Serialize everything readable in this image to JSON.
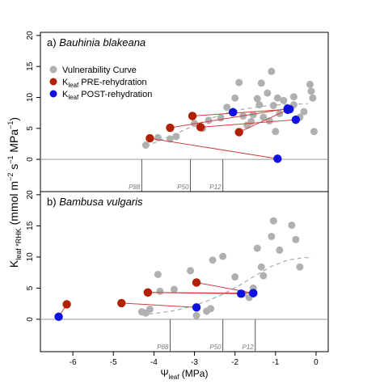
{
  "figure": {
    "ylabel": "K",
    "ylabel_sub": "leaf *RHK",
    "ylabel_units_1": " (mmol m",
    "ylabel_sup1": "−2",
    "ylabel_units_2": " s",
    "ylabel_sup2": "−1",
    "ylabel_units_3": " MPa",
    "ylabel_sup3": "−1",
    "ylabel_end": ")",
    "xlabel": "Ψ",
    "xlabel_sub": "leaf",
    "xlabel_units": " (MPa)"
  },
  "legend": {
    "vc_label": "Vulnerability Curve",
    "pre_main": "K",
    "pre_sub": "leaf",
    "pre_rest": " PRE-rehydration",
    "post_main": "K",
    "post_sub": "leaf",
    "post_rest": " POST-rehydration",
    "colors": {
      "vc": "#b0b0b0",
      "pre": "#b22000",
      "post": "#1010e0",
      "line": "#d04040",
      "curve": "#a8a8a8"
    }
  },
  "chart_data": [
    {
      "type": "scatter",
      "panel_label": "a)",
      "panel_species": "Bauhinia blakeana",
      "xlim": [
        -6.8,
        0.3
      ],
      "ylim": [
        -5.2,
        20.5
      ],
      "x_ticks": [
        "-6",
        "-5",
        "-4",
        "-3",
        "-2",
        "-1",
        "0"
      ],
      "x_tick_values": [
        -6,
        -5,
        -4,
        -3,
        -2,
        -1,
        0
      ],
      "y_ticks": [
        "0",
        "5",
        "10",
        "15",
        "20"
      ],
      "y_tick_values": [
        0,
        5,
        10,
        15,
        20
      ],
      "p_markers": [
        {
          "label": "P88",
          "x": -4.3
        },
        {
          "label": "P50",
          "x": -3.1
        },
        {
          "label": "P12",
          "x": -2.3
        }
      ],
      "vulnerability_curve_points": [
        [
          -4.2,
          2.3
        ],
        [
          -3.9,
          3.5
        ],
        [
          -3.6,
          3.3
        ],
        [
          -3.45,
          3.7
        ],
        [
          -3.0,
          5.8
        ],
        [
          -2.8,
          5.0
        ],
        [
          -2.65,
          6.3
        ],
        [
          -2.35,
          6.7
        ],
        [
          -2.2,
          8.4
        ],
        [
          -2.0,
          9.9
        ],
        [
          -1.9,
          12.4
        ],
        [
          -1.8,
          7.0
        ],
        [
          -1.7,
          5.5
        ],
        [
          -1.6,
          6.1
        ],
        [
          -1.55,
          7.2
        ],
        [
          -1.45,
          9.8
        ],
        [
          -1.4,
          8.8
        ],
        [
          -1.35,
          12.3
        ],
        [
          -1.3,
          6.8
        ],
        [
          -1.2,
          10.7
        ],
        [
          -1.15,
          6.2
        ],
        [
          -1.1,
          14.2
        ],
        [
          -1.05,
          8.7
        ],
        [
          -1.0,
          4.5
        ],
        [
          -0.95,
          9.9
        ],
        [
          -0.9,
          7.4
        ],
        [
          -0.8,
          9.5
        ],
        [
          -0.7,
          7.9
        ],
        [
          -0.55,
          10.1
        ],
        [
          -0.4,
          6.8
        ],
        [
          -0.3,
          7.7
        ],
        [
          -0.15,
          12.1
        ],
        [
          -0.12,
          11.0
        ],
        [
          -0.08,
          9.9
        ],
        [
          -0.05,
          4.5
        ],
        [
          -0.55,
          8.8
        ]
      ],
      "vulnerability_curve_fit": [
        [
          -4.2,
          2.1
        ],
        [
          -3.8,
          3.2
        ],
        [
          -3.4,
          4.3
        ],
        [
          -3.0,
          5.5
        ],
        [
          -2.6,
          6.6
        ],
        [
          -2.2,
          7.5
        ],
        [
          -1.8,
          8.1
        ],
        [
          -1.4,
          8.5
        ],
        [
          -1.0,
          8.8
        ],
        [
          -0.6,
          8.9
        ],
        [
          -0.2,
          9.0
        ]
      ],
      "pairs": [
        {
          "pre": [
            -4.1,
            3.4
          ],
          "post": [
            -0.95,
            0.1
          ]
        },
        {
          "pre": [
            -3.6,
            5.1
          ],
          "post": [
            -0.7,
            8.2
          ]
        },
        {
          "pre": [
            -3.05,
            7.0
          ],
          "post": [
            -0.65,
            8.1
          ]
        },
        {
          "pre": [
            -2.85,
            5.2
          ],
          "post": [
            -0.5,
            6.4
          ]
        },
        {
          "pre": [
            -1.9,
            4.4
          ],
          "post": [
            -0.7,
            8.0
          ]
        },
        {
          "pre": [
            -2.05,
            7.6
          ],
          "post": [
            -2.05,
            7.6
          ]
        }
      ]
    },
    {
      "type": "scatter",
      "panel_label": "b)",
      "panel_species": "Bambusa vulgaris",
      "xlim": [
        -6.8,
        0.3
      ],
      "ylim": [
        -5.2,
        20.5
      ],
      "x_ticks": [
        "-6",
        "-5",
        "-4",
        "-3",
        "-2",
        "-1",
        "0"
      ],
      "x_tick_values": [
        -6,
        -5,
        -4,
        -3,
        -2,
        -1,
        0
      ],
      "y_ticks": [
        "0",
        "5",
        "10",
        "15",
        "20"
      ],
      "y_tick_values": [
        0,
        5,
        10,
        15,
        20
      ],
      "p_markers": [
        {
          "label": "P88",
          "x": -3.6
        },
        {
          "label": "P50",
          "x": -2.3
        },
        {
          "label": "P12",
          "x": -1.5
        }
      ],
      "vulnerability_curve_points": [
        [
          -4.3,
          1.2
        ],
        [
          -4.2,
          1.0
        ],
        [
          -4.1,
          1.6
        ],
        [
          -3.85,
          4.5
        ],
        [
          -3.9,
          7.2
        ],
        [
          -3.5,
          4.8
        ],
        [
          -3.1,
          7.8
        ],
        [
          -2.95,
          0.6
        ],
        [
          -2.7,
          1.3
        ],
        [
          -2.6,
          1.7
        ],
        [
          -2.55,
          9.5
        ],
        [
          -2.3,
          10.1
        ],
        [
          -2.0,
          6.8
        ],
        [
          -1.8,
          4.1
        ],
        [
          -1.65,
          3.5
        ],
        [
          -1.55,
          5.0
        ],
        [
          -1.45,
          11.4
        ],
        [
          -1.35,
          8.4
        ],
        [
          -1.3,
          7.0
        ],
        [
          -1.1,
          13.3
        ],
        [
          -1.05,
          15.8
        ],
        [
          -0.9,
          11.1
        ],
        [
          -0.6,
          15.1
        ],
        [
          -0.5,
          12.8
        ],
        [
          -0.4,
          8.4
        ]
      ],
      "vulnerability_curve_fit": [
        [
          -4.3,
          0.7
        ],
        [
          -3.9,
          1.0
        ],
        [
          -3.5,
          1.4
        ],
        [
          -3.1,
          2.0
        ],
        [
          -2.7,
          2.9
        ],
        [
          -2.3,
          4.0
        ],
        [
          -1.9,
          5.4
        ],
        [
          -1.5,
          7.0
        ],
        [
          -1.1,
          8.5
        ],
        [
          -0.7,
          9.5
        ],
        [
          -0.3,
          9.9
        ],
        [
          -0.1,
          9.9
        ]
      ],
      "pairs": [
        {
          "pre": [
            -6.15,
            2.4
          ],
          "post": [
            -6.35,
            0.4
          ]
        },
        {
          "pre": [
            -4.8,
            2.6
          ],
          "post": [
            -2.95,
            1.9
          ]
        },
        {
          "pre": [
            -4.15,
            4.3
          ],
          "post": [
            -1.85,
            4.1
          ]
        },
        {
          "pre": [
            -2.95,
            5.9
          ],
          "post": [
            -1.55,
            4.2
          ]
        },
        {
          "pre": [
            -4.15,
            4.3
          ],
          "post": [
            -1.55,
            4.2
          ]
        }
      ]
    }
  ]
}
